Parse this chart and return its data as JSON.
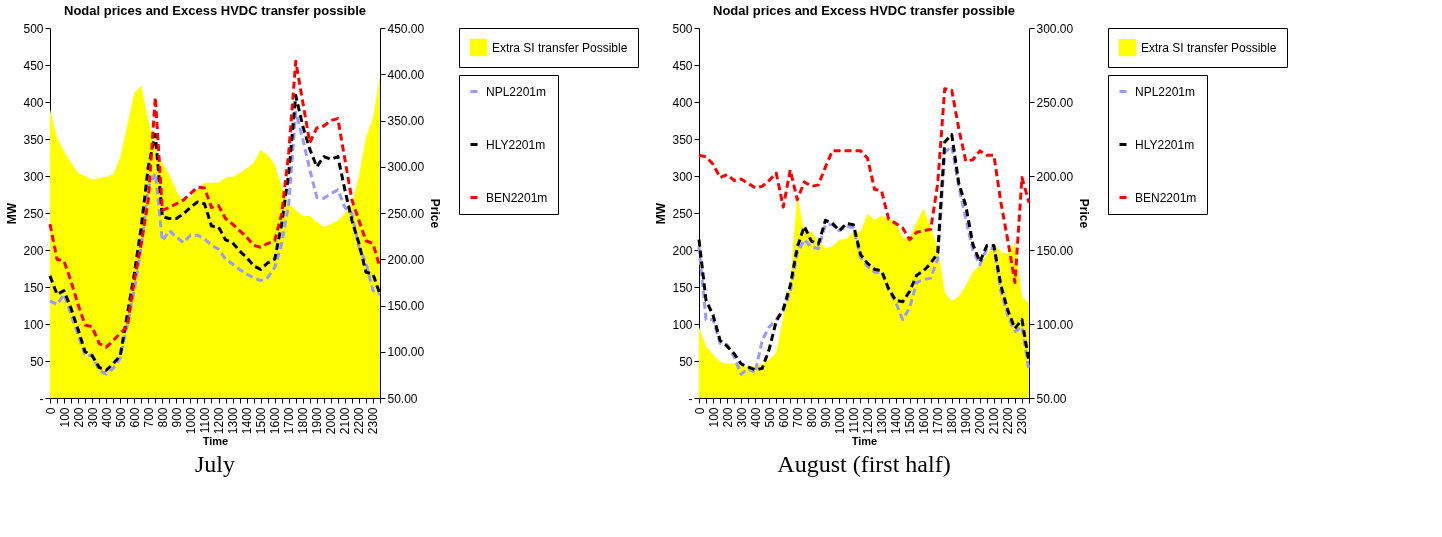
{
  "chart_data": [
    {
      "type": "line",
      "title": "Nodal prices and Excess HVDC transfer possible",
      "xlabel": "Time",
      "ylabel": "MW",
      "y2label": "Price",
      "categories": [
        "0",
        null,
        "100",
        null,
        "200",
        null,
        "300",
        null,
        "400",
        null,
        "500",
        null,
        "600",
        null,
        "700",
        null,
        "800",
        null,
        "900",
        null,
        "1000",
        null,
        "1100",
        null,
        "1200",
        null,
        "1300",
        null,
        "1400",
        null,
        "1500",
        null,
        "1600",
        null,
        "1700",
        null,
        "1800",
        null,
        "1900",
        null,
        "2000",
        null,
        "2100",
        null,
        "2200",
        null,
        "2300",
        null
      ],
      "series": [
        {
          "name": "Extra SI transfer Possible",
          "type": "area",
          "color": "#ffff00",
          "values": [
            390,
            352,
            333,
            318,
            304,
            300,
            295,
            297,
            299,
            302,
            325,
            368,
            412,
            422,
            375,
            336,
            318,
            302,
            280,
            265,
            272,
            282,
            291,
            291,
            291,
            298,
            299,
            304,
            310,
            318,
            335,
            328,
            316,
            285,
            262,
            254,
            246,
            246,
            238,
            231,
            235,
            240,
            249,
            262,
            300,
            352,
            378,
            435
          ]
        },
        {
          "name": "NPL2201m",
          "axis": "y2",
          "color": "#9999ff",
          "values": [
            155,
            151,
            162,
            140,
            118,
            96,
            96,
            80,
            76,
            82,
            93,
            129,
            166,
            213,
            278,
            293,
            220,
            231,
            224,
            218,
            226,
            226,
            222,
            215,
            211,
            200,
            195,
            189,
            184,
            180,
            177,
            180,
            191,
            217,
            260,
            359,
            330,
            297,
            267,
            266,
            271,
            275,
            256,
            249,
            213,
            196,
            166,
            162
          ]
        },
        {
          "name": "HLY2201m",
          "axis": "y2",
          "color": "#000000",
          "values": [
            182,
            162,
            166,
            147,
            124,
            100,
            96,
            83,
            80,
            87,
            96,
            140,
            184,
            235,
            300,
            335,
            246,
            244,
            244,
            249,
            256,
            262,
            260,
            236,
            235,
            221,
            218,
            209,
            202,
            193,
            189,
            196,
            200,
            238,
            293,
            377,
            344,
            319,
            300,
            311,
            308,
            311,
            275,
            242,
            217,
            186,
            184,
            162
          ]
        },
        {
          "name": "BEN2201m",
          "axis": "y2",
          "color": "#ff0000",
          "values": [
            238,
            200,
            198,
            176,
            151,
            129,
            127,
            109,
            105,
            112,
            120,
            127,
            177,
            217,
            264,
            375,
            253,
            256,
            260,
            264,
            271,
            278,
            277,
            256,
            258,
            244,
            238,
            231,
            224,
            215,
            213,
            217,
            220,
            249,
            315,
            414,
            370,
            326,
            342,
            344,
            350,
            352,
            308,
            264,
            242,
            220,
            217,
            191
          ]
        }
      ],
      "ylim": [
        0,
        500
      ],
      "yticks": [
        {
          "value": 0,
          "label": "-"
        },
        50,
        100,
        150,
        200,
        250,
        300,
        350,
        400,
        450,
        500
      ],
      "y2lim": [
        50,
        450
      ],
      "y2ticks": [
        {
          "value": 50,
          "label": "50.00"
        },
        {
          "value": 100,
          "label": "100.00"
        },
        {
          "value": 150,
          "label": "150.00"
        },
        {
          "value": 200,
          "label": "200.00"
        },
        {
          "value": 250,
          "label": "250.00"
        },
        {
          "value": 300,
          "label": "300.00"
        },
        {
          "value": 350,
          "label": "350.00"
        },
        {
          "value": 400,
          "label": "400.00"
        },
        {
          "value": 450,
          "label": "450.00"
        }
      ],
      "grid": false,
      "legend": "right",
      "line_style": "dashed",
      "marker": "none",
      "annotations": [
        "July"
      ]
    },
    {
      "type": "line",
      "title": "Nodal prices and Excess HVDC transfer possible",
      "xlabel": "Time",
      "ylabel": "MW",
      "y2label": "Price",
      "categories": [
        "0",
        null,
        "100",
        null,
        "200",
        null,
        "300",
        null,
        "400",
        null,
        "500",
        null,
        "600",
        null,
        "700",
        null,
        "800",
        null,
        "900",
        null,
        "1000",
        null,
        "1100",
        null,
        "1200",
        null,
        "1300",
        null,
        "1400",
        null,
        "1500",
        null,
        "1600",
        null,
        "1700",
        null,
        "1800",
        null,
        "1900",
        null,
        "2000",
        null,
        "2100",
        null,
        "2200",
        null,
        "2300",
        null
      ],
      "series": [
        {
          "name": "Extra SI transfer Possible",
          "type": "area",
          "color": "#ffff00",
          "values": [
            96,
            70,
            59,
            49,
            46,
            47,
            44,
            42,
            44,
            46,
            52,
            61,
            109,
            159,
            274,
            225,
            225,
            212,
            202,
            205,
            214,
            215,
            225,
            225,
            249,
            241,
            246,
            243,
            238,
            217,
            216,
            238,
            256,
            230,
            204,
            143,
            131,
            137,
            152,
            170,
            180,
            194,
            208,
            197,
            195,
            210,
            137,
            128
          ]
        },
        {
          "name": "NPL2201m",
          "axis": "y2",
          "color": "#9999ff",
          "values": [
            152,
            103,
            103,
            87,
            86,
            78,
            66,
            70,
            67,
            89,
            98,
            103,
            109,
            122,
            148,
            157,
            152,
            151,
            167,
            167,
            163,
            166,
            165,
            145,
            139,
            135,
            135,
            123,
            115,
            103,
            111,
            128,
            130,
            131,
            144,
            216,
            220,
            193,
            171,
            150,
            140,
            151,
            151,
            122,
            105,
            95,
            98,
            68
          ]
        },
        {
          "name": "HLY2201m",
          "axis": "y2",
          "color": "#000000",
          "values": [
            157,
            116,
            106,
            89,
            85,
            80,
            73,
            71,
            69,
            70,
            83,
            102,
            110,
            126,
            152,
            166,
            156,
            154,
            170,
            168,
            163,
            168,
            167,
            147,
            141,
            137,
            136,
            124,
            116,
            115,
            122,
            133,
            136,
            141,
            148,
            223,
            228,
            195,
            180,
            154,
            142,
            153,
            153,
            126,
            109,
            97,
            103,
            74
          ]
        },
        {
          "name": "BEN2201m",
          "axis": "y2",
          "color": "#ff0000",
          "values": [
            214,
            213,
            208,
            199,
            201,
            197,
            198,
            195,
            192,
            193,
            197,
            202,
            179,
            204,
            184,
            196,
            193,
            194,
            206,
            217,
            217,
            217,
            217,
            217,
            212,
            191,
            190,
            171,
            168,
            165,
            157,
            162,
            163,
            164,
            195,
            259,
            258,
            232,
            210,
            211,
            217,
            214,
            214,
            182,
            156,
            128,
            199,
            182
          ]
        }
      ],
      "ylim": [
        0,
        500
      ],
      "yticks": [
        {
          "value": 0,
          "label": "-"
        },
        50,
        100,
        150,
        200,
        250,
        300,
        350,
        400,
        450,
        500
      ],
      "y2lim": [
        50,
        300
      ],
      "y2ticks": [
        {
          "value": 50,
          "label": "50.00"
        },
        {
          "value": 100,
          "label": "100.00"
        },
        {
          "value": 150,
          "label": "150.00"
        },
        {
          "value": 200,
          "label": "200.00"
        },
        {
          "value": 250,
          "label": "250.00"
        },
        {
          "value": 300,
          "label": "300.00"
        }
      ],
      "grid": false,
      "legend": "right",
      "line_style": "dashed",
      "marker": "none",
      "annotations": [
        "August (first half)"
      ]
    }
  ]
}
